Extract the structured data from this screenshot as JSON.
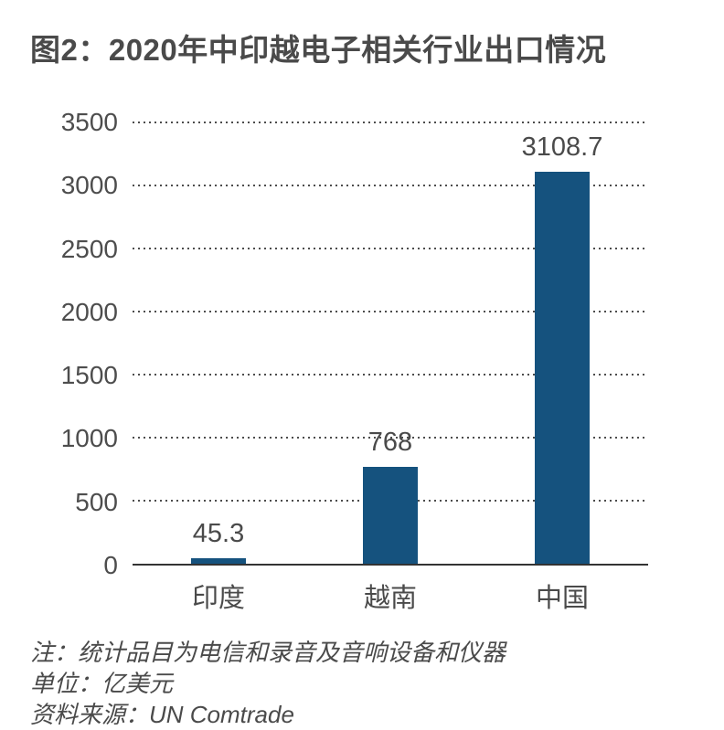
{
  "header": {
    "title": "图2：2020年中印越电子相关行业出口情况"
  },
  "chart_data": {
    "type": "bar",
    "title": "图2：2020年中印越电子相关行业出口情况",
    "categories": [
      "印度",
      "越南",
      "中国"
    ],
    "values": [
      45.3,
      768,
      3108.7
    ],
    "value_labels": [
      "45.3",
      "768",
      "3108.7"
    ],
    "xlabel": "",
    "ylabel": "",
    "ylim": [
      0,
      3500
    ],
    "yticks": [
      0,
      500,
      1000,
      1500,
      2000,
      2500,
      3000,
      3500
    ],
    "grid": "horizontal dotted gridlines, solid zero baseline",
    "legend_position": "none",
    "bar_color": "#15527e"
  },
  "notes": {
    "note": "注：统计品目为电信和录音及音响设备和仪器",
    "unit": "单位：亿美元",
    "source": "资料来源：UN Comtrade"
  },
  "colors": {
    "bar": "#15527e",
    "text": "#4a4a4a",
    "grid": "#4c4c4c",
    "baseline": "#333333",
    "background": "#ffffff"
  }
}
